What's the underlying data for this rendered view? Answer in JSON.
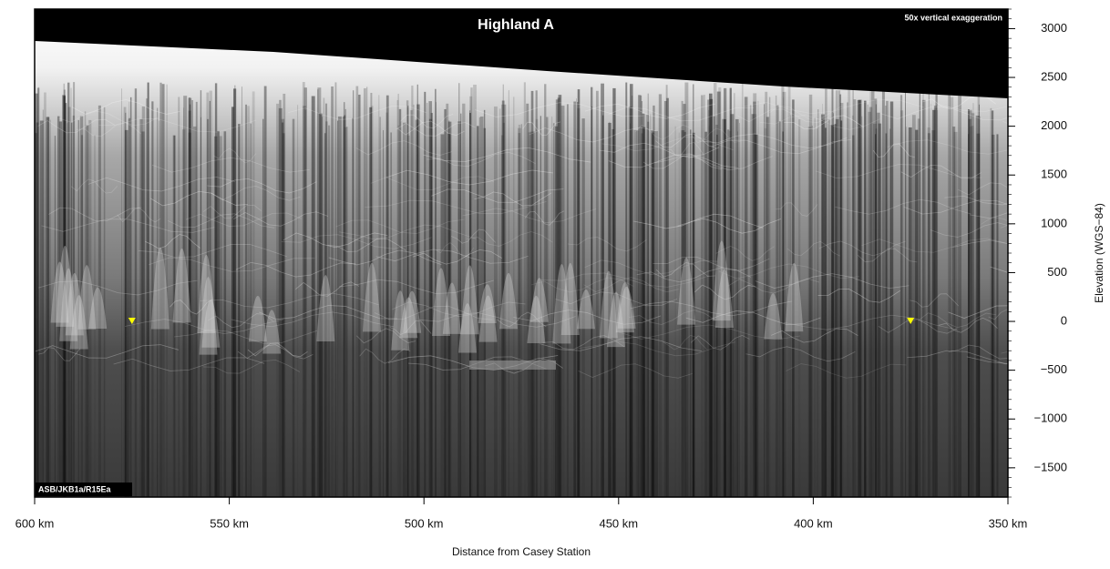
{
  "chart_data": {
    "type": "radargram",
    "title": "Highland A",
    "annotations": [
      "50x vertical exaggeration",
      "ASB/JKB1a/R15Ea"
    ],
    "xlabel": "Distance from Casey Station",
    "ylabel": "Elevation (WGS−84)",
    "xlim": [
      600,
      350
    ],
    "xticks": [
      {
        "value": 600,
        "label": "600 km"
      },
      {
        "value": 550,
        "label": "550 km"
      },
      {
        "value": 500,
        "label": "500 km"
      },
      {
        "value": 450,
        "label": "450 km"
      },
      {
        "value": 400,
        "label": "400 km"
      },
      {
        "value": 350,
        "label": "350 km"
      }
    ],
    "ylim": [
      -1800,
      3200
    ],
    "yticks": [
      {
        "value": -1500,
        "label": "−1500"
      },
      {
        "value": -1000,
        "label": "−1000"
      },
      {
        "value": -500,
        "label": "−500"
      },
      0,
      500,
      1000,
      1500,
      2000,
      2500,
      3000
    ],
    "series": [
      {
        "x": [
          575,
          375
        ],
        "values": [
          0,
          0
        ],
        "color": "#ffff00"
      }
    ]
  }
}
